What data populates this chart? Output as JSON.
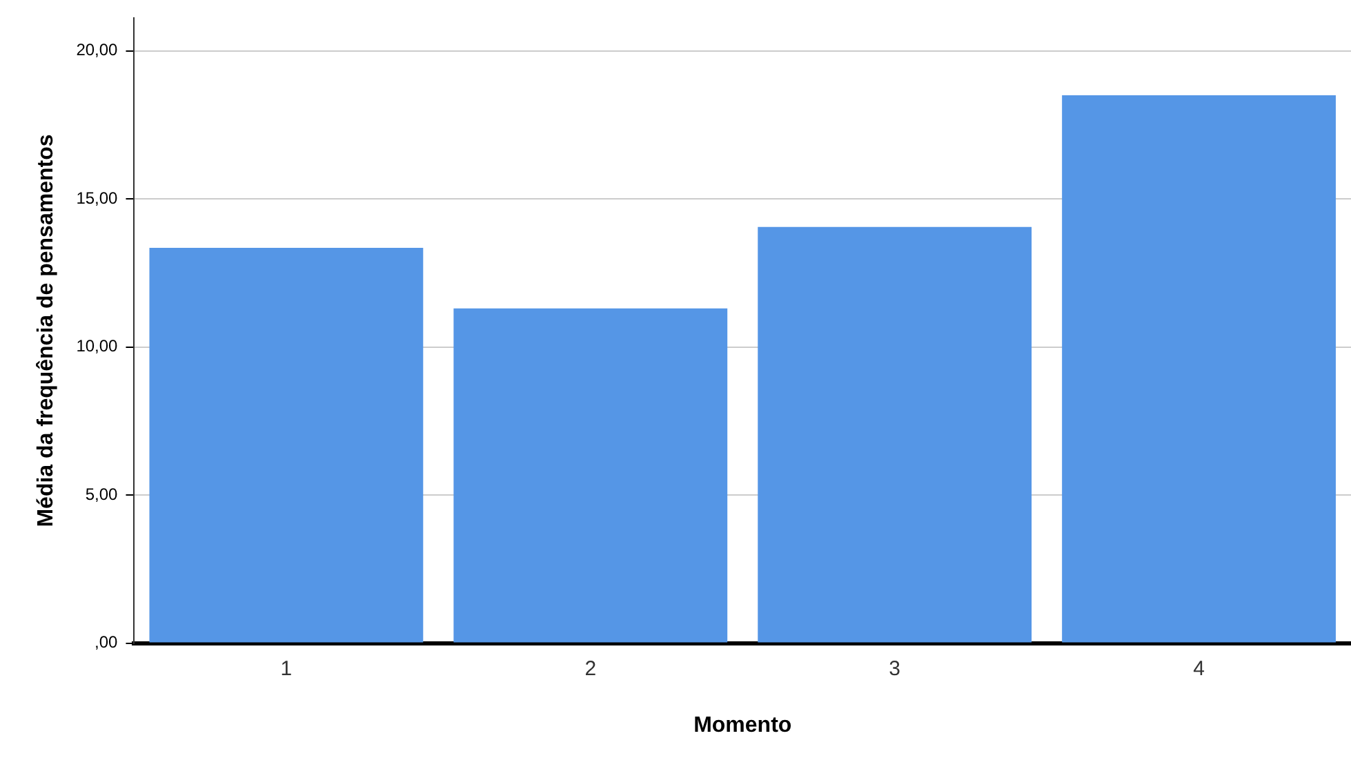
{
  "chart_data": {
    "type": "bar",
    "xlabel": "Momento",
    "ylabel": "Média da frequência de pensamentos",
    "categories": [
      "1",
      "2",
      "3",
      "4"
    ],
    "values": [
      13.35,
      11.3,
      14.05,
      18.5
    ],
    "color": "#5596e6",
    "ylim": [
      0,
      21.1
    ],
    "yticks": [
      {
        "value": 0,
        "label": ",00"
      },
      {
        "value": 5,
        "label": "5,00"
      },
      {
        "value": 10,
        "label": "10,00"
      },
      {
        "value": 15,
        "label": "15,00"
      },
      {
        "value": 20,
        "label": "20,00"
      }
    ],
    "grid": "y",
    "legend": false
  }
}
